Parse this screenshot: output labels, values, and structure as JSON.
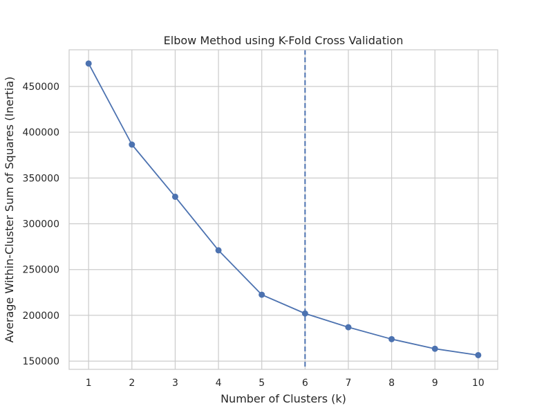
{
  "chart_data": {
    "type": "line",
    "title": "Elbow Method using K-Fold Cross Validation",
    "xlabel": "Number of Clusters (k)",
    "ylabel": "Average Within-Cluster Sum of Squares (Inertia)",
    "x": [
      1,
      2,
      3,
      4,
      5,
      6,
      7,
      8,
      9,
      10
    ],
    "series": [
      {
        "values": [
          475000,
          386500,
          329500,
          271000,
          222500,
          202000,
          187000,
          174000,
          163500,
          156500
        ]
      }
    ],
    "xticks": [
      "1",
      "2",
      "3",
      "4",
      "5",
      "6",
      "7",
      "8",
      "9",
      "10"
    ],
    "yticks": [
      150000,
      200000,
      250000,
      300000,
      350000,
      400000,
      450000
    ],
    "yticklabels": [
      "150000",
      "200000",
      "250000",
      "300000",
      "350000",
      "400000",
      "450000"
    ],
    "xlim": [
      0.55,
      10.45
    ],
    "ylim": [
      141000,
      490000
    ],
    "vline_x": 6,
    "grid": true,
    "colors": {
      "line": "#4c72b0",
      "grid": "#cccccc",
      "text": "#262626",
      "background": "#ffffff"
    }
  }
}
